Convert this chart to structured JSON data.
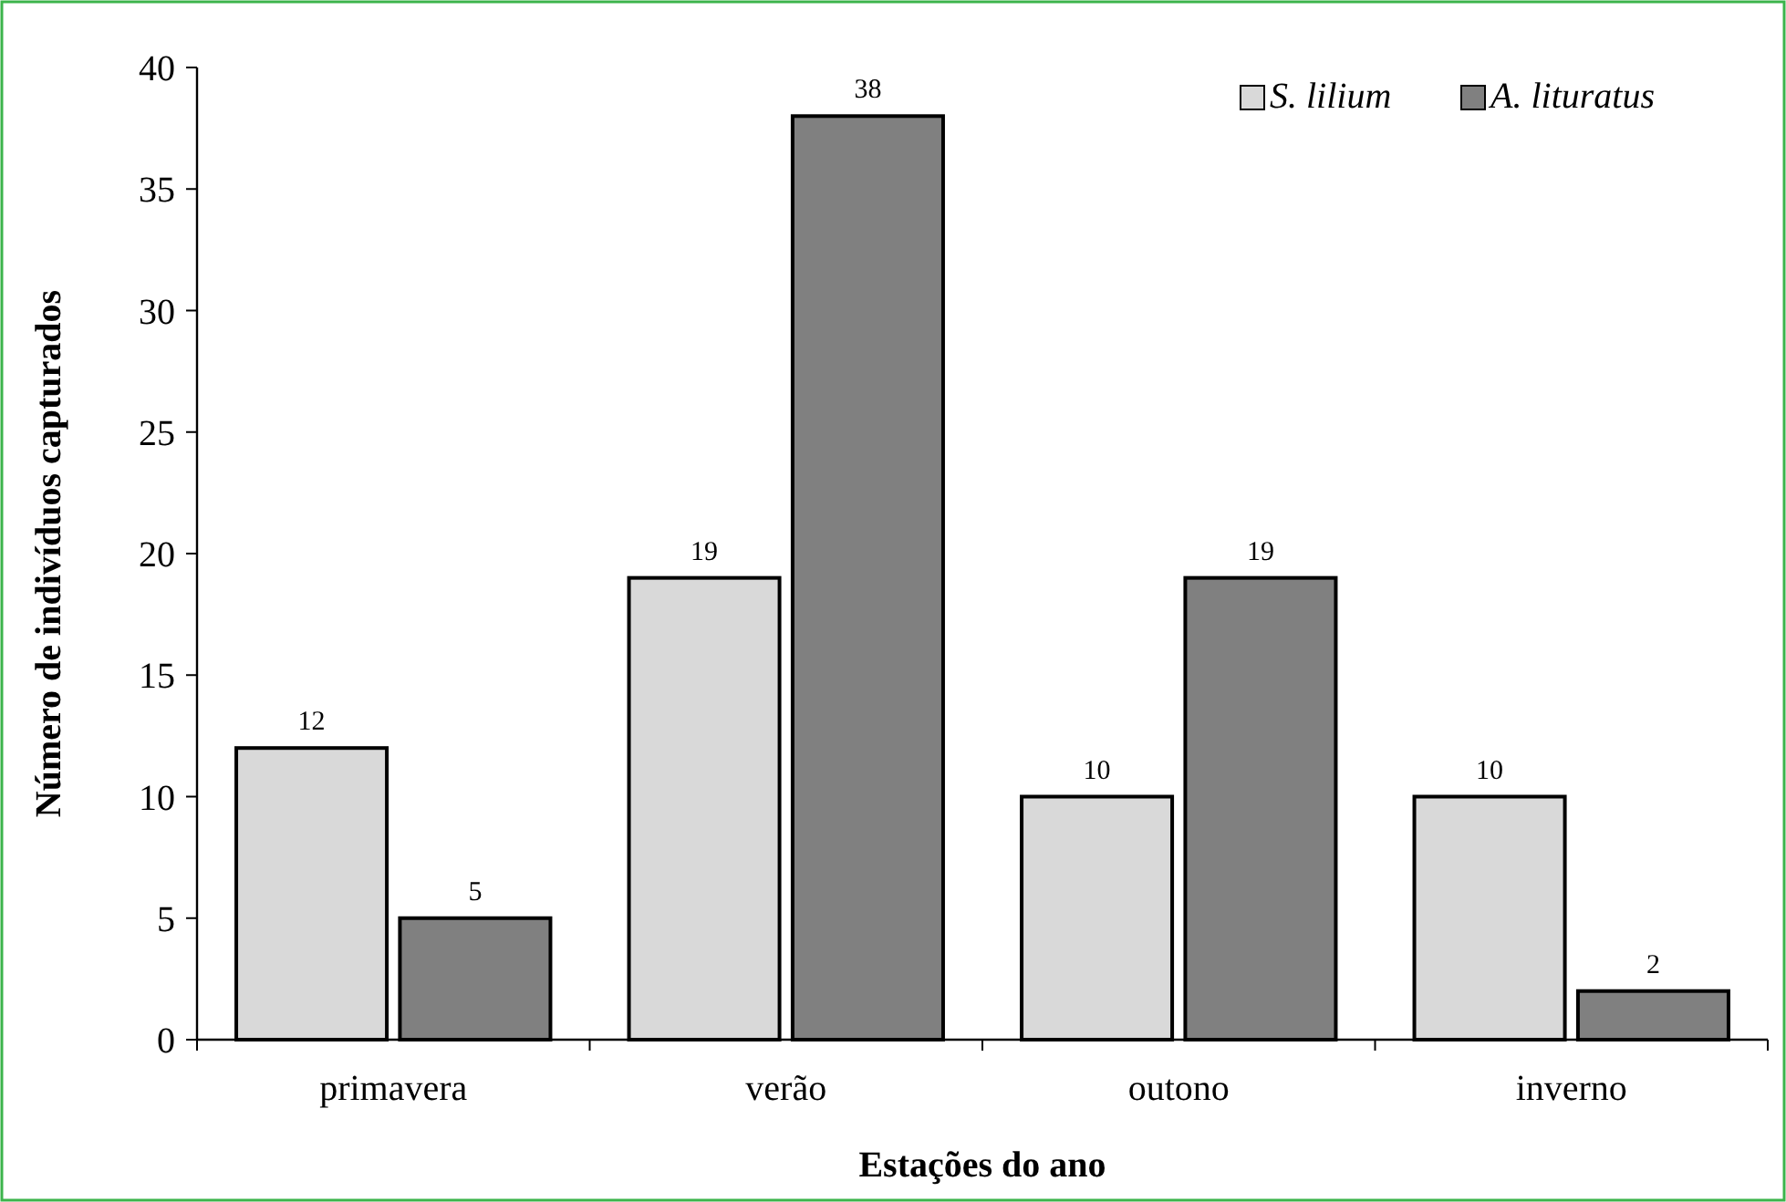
{
  "chart_data": {
    "type": "bar",
    "xlabel": "Estações do ano",
    "ylabel": "Número de indivíduos capturados",
    "categories": [
      "primavera",
      "verão",
      "outono",
      "inverno"
    ],
    "series": [
      {
        "name": "S. lilium",
        "color": "#d9d9d9",
        "values": [
          12,
          19,
          10,
          10
        ]
      },
      {
        "name": "A. lituratus",
        "color": "#808080",
        "values": [
          5,
          38,
          19,
          2
        ]
      }
    ],
    "ylim": [
      0,
      40
    ],
    "yticks": [
      0,
      5,
      10,
      15,
      20,
      25,
      30,
      35,
      40
    ],
    "data_labels": true,
    "legend": "top right",
    "grid": false
  }
}
